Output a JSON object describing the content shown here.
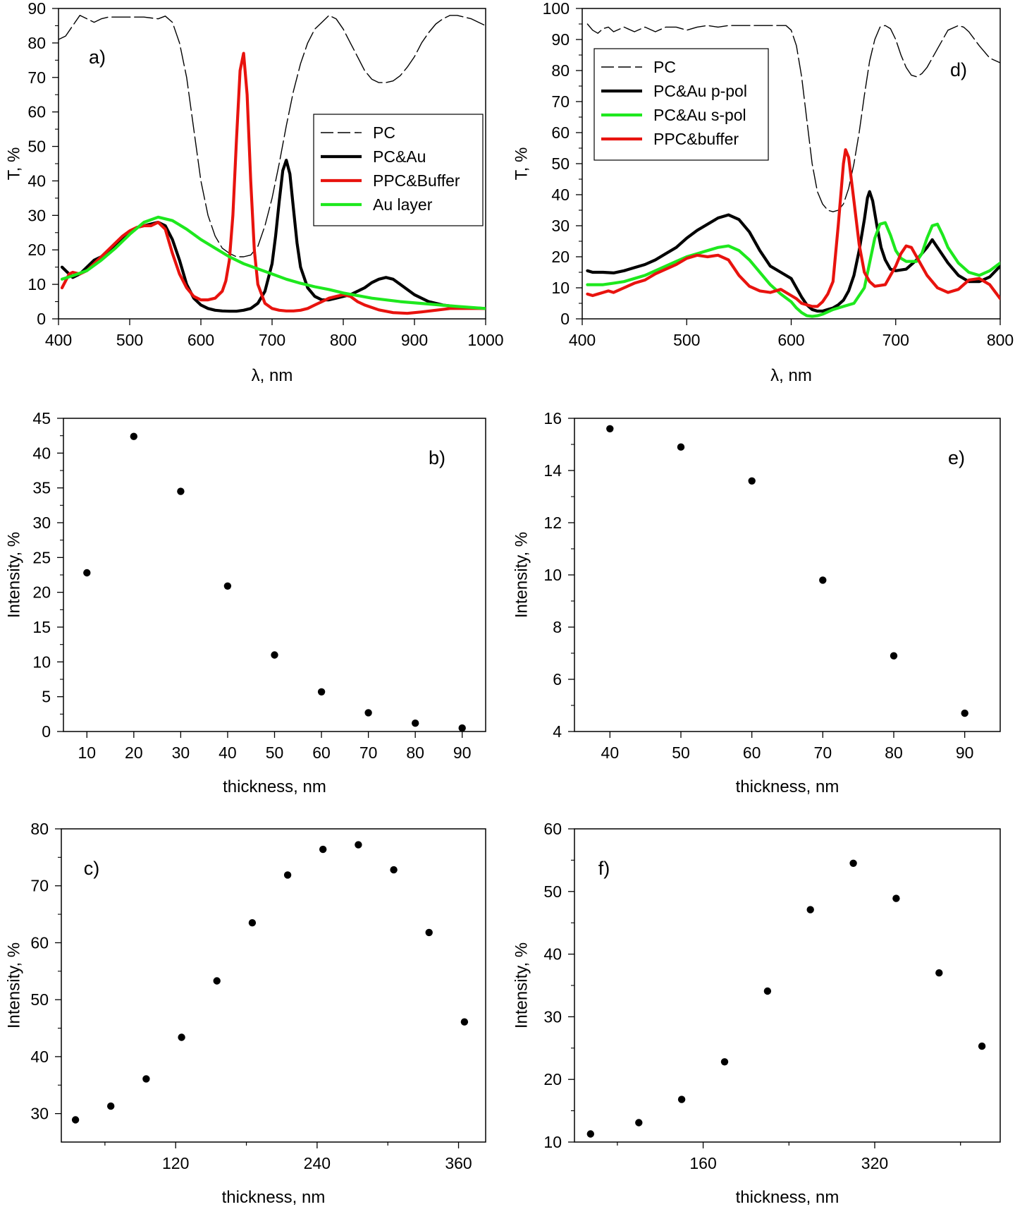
{
  "chart_data": [
    {
      "id": "a",
      "type": "line",
      "panel_label": "a)",
      "xlabel": "λ, nm",
      "ylabel": "T, %",
      "xlim": [
        400,
        1000
      ],
      "ylim": [
        0,
        90
      ],
      "xticks": [
        400,
        500,
        600,
        700,
        800,
        900,
        1000
      ],
      "yticks": [
        0,
        10,
        20,
        30,
        40,
        50,
        60,
        70,
        80,
        90
      ],
      "legend_position": "center-right",
      "series": [
        {
          "name": "PC",
          "color": "#000000",
          "style": "dashed",
          "x": [
            400,
            410,
            420,
            430,
            440,
            450,
            460,
            470,
            480,
            500,
            520,
            540,
            550,
            560,
            570,
            580,
            590,
            600,
            610,
            620,
            630,
            640,
            650,
            660,
            670,
            680,
            690,
            700,
            710,
            720,
            730,
            740,
            750,
            760,
            770,
            780,
            790,
            800,
            810,
            820,
            830,
            840,
            850,
            860,
            870,
            880,
            890,
            900,
            910,
            920,
            930,
            940,
            950,
            960,
            970,
            980,
            990,
            1000
          ],
          "y": [
            81,
            82,
            85,
            88,
            87,
            86,
            87,
            87.5,
            87.5,
            87.5,
            87.5,
            87,
            87.8,
            86,
            80,
            70,
            55,
            40,
            30,
            24,
            20.5,
            19,
            18,
            18,
            18.5,
            21,
            27,
            35,
            45,
            56,
            66,
            74,
            80,
            84,
            86,
            88,
            87,
            84,
            80,
            76,
            72,
            69.5,
            68.5,
            68.5,
            69,
            70.5,
            73,
            76,
            80,
            83,
            85.5,
            87,
            88,
            88,
            87.5,
            87,
            86,
            85
          ]
        },
        {
          "name": "PC&Au",
          "color": "#000000",
          "style": "solid",
          "x": [
            405,
            410,
            420,
            430,
            440,
            450,
            460,
            470,
            480,
            490,
            500,
            510,
            520,
            530,
            540,
            550,
            560,
            570,
            580,
            590,
            600,
            610,
            620,
            630,
            640,
            650,
            660,
            670,
            680,
            690,
            700,
            705,
            710,
            715,
            720,
            725,
            730,
            735,
            740,
            750,
            760,
            770,
            780,
            790,
            800,
            810,
            820,
            830,
            840,
            850,
            860,
            870,
            880,
            890,
            900,
            920,
            940,
            960,
            980,
            1000
          ],
          "y": [
            15,
            14,
            12,
            13,
            15,
            17,
            18,
            19.5,
            21,
            23,
            25,
            26.5,
            27,
            27.5,
            28,
            27,
            23,
            17,
            10,
            6,
            4,
            3,
            2.5,
            2.3,
            2.2,
            2.2,
            2.5,
            3,
            4.5,
            8,
            16,
            24,
            34,
            43,
            46,
            42,
            32,
            22,
            15,
            9,
            6.5,
            5.5,
            5.5,
            6,
            6.5,
            7,
            8,
            9,
            10.5,
            11.5,
            12,
            11.5,
            10,
            8.5,
            7,
            5,
            4,
            3.5,
            3.2,
            3
          ]
        },
        {
          "name": "PPC&Buffer",
          "color": "#e8130e",
          "style": "solid",
          "x": [
            405,
            410,
            415,
            420,
            430,
            440,
            450,
            460,
            470,
            480,
            490,
            500,
            510,
            520,
            530,
            540,
            550,
            560,
            570,
            580,
            590,
            600,
            610,
            620,
            630,
            635,
            640,
            645,
            650,
            655,
            660,
            665,
            670,
            675,
            680,
            690,
            700,
            710,
            720,
            730,
            740,
            750,
            760,
            770,
            780,
            790,
            800,
            810,
            820,
            830,
            850,
            870,
            890,
            910,
            930,
            950,
            970,
            1000
          ],
          "y": [
            9,
            11,
            13,
            13.5,
            13,
            14,
            16,
            18,
            20,
            22,
            24,
            25.5,
            26.5,
            27,
            27,
            28,
            26,
            19,
            13,
            9,
            6.5,
            5.5,
            5.5,
            6,
            8,
            11,
            17,
            30,
            52,
            72,
            77,
            65,
            40,
            20,
            10,
            4.5,
            3,
            2.5,
            2.3,
            2.3,
            2.5,
            3,
            4,
            5,
            6,
            6.5,
            7,
            6.5,
            5,
            4,
            2.6,
            1.8,
            1.6,
            2,
            2.5,
            3,
            3,
            3
          ]
        },
        {
          "name": "Au layer",
          "color": "#1ee81e",
          "style": "solid",
          "x": [
            405,
            420,
            440,
            460,
            480,
            500,
            520,
            540,
            560,
            580,
            600,
            620,
            640,
            660,
            680,
            700,
            720,
            740,
            760,
            780,
            800,
            840,
            880,
            920,
            960,
            1000
          ],
          "y": [
            11.5,
            12.5,
            14,
            17,
            20.5,
            24.5,
            28,
            29.5,
            28.5,
            26,
            23,
            20.5,
            18,
            16,
            14.5,
            13,
            11.5,
            10.3,
            9.3,
            8.5,
            7.5,
            6,
            5,
            4.3,
            3.6,
            3
          ]
        }
      ]
    },
    {
      "id": "d",
      "type": "line",
      "panel_label": "d)",
      "xlabel": "λ, nm",
      "ylabel": "T, %",
      "xlim": [
        400,
        800
      ],
      "ylim": [
        0,
        100
      ],
      "xticks": [
        400,
        500,
        600,
        700,
        800
      ],
      "yticks": [
        0,
        10,
        20,
        30,
        40,
        50,
        60,
        70,
        80,
        90,
        100
      ],
      "legend_position": "top-left",
      "series": [
        {
          "name": "PC",
          "color": "#000000",
          "style": "dashed",
          "x": [
            405,
            410,
            415,
            420,
            425,
            430,
            440,
            450,
            460,
            470,
            480,
            490,
            500,
            510,
            520,
            530,
            540,
            550,
            560,
            570,
            580,
            590,
            595,
            600,
            605,
            610,
            615,
            620,
            625,
            630,
            635,
            640,
            645,
            650,
            655,
            660,
            665,
            670,
            675,
            680,
            685,
            690,
            695,
            700,
            705,
            710,
            715,
            720,
            725,
            730,
            740,
            750,
            760,
            765,
            770,
            780,
            790,
            800
          ],
          "y": [
            95,
            93,
            92,
            93.5,
            94,
            92.5,
            94,
            92.5,
            94,
            92.5,
            94,
            94,
            93,
            94,
            94.5,
            94,
            94.5,
            94.5,
            94.5,
            94.5,
            94.5,
            94.5,
            94.5,
            93,
            88,
            78,
            64,
            50,
            41,
            37,
            35,
            34.5,
            35,
            37,
            42,
            50,
            60,
            72,
            83,
            90,
            94,
            94.5,
            93.5,
            90,
            85,
            81,
            78.5,
            78,
            79,
            81,
            87,
            93,
            94.5,
            94,
            92.5,
            88,
            84,
            82.5
          ]
        },
        {
          "name": "PC&Au p-pol",
          "color": "#000000",
          "style": "solid",
          "x": [
            405,
            410,
            420,
            430,
            440,
            450,
            460,
            470,
            480,
            490,
            500,
            510,
            520,
            530,
            540,
            550,
            560,
            570,
            580,
            590,
            600,
            605,
            610,
            615,
            620,
            625,
            630,
            635,
            640,
            645,
            650,
            655,
            660,
            665,
            670,
            673,
            675,
            678,
            682,
            686,
            690,
            695,
            700,
            710,
            720,
            730,
            735,
            740,
            750,
            760,
            770,
            780,
            790,
            800
          ],
          "y": [
            15.5,
            15,
            15,
            14.8,
            15.5,
            16.5,
            17.5,
            19,
            21,
            23,
            26,
            28.5,
            30.5,
            32.5,
            33.5,
            32,
            28,
            22,
            17,
            15,
            13,
            10,
            7,
            4.5,
            3,
            2.5,
            2.5,
            3,
            3.5,
            4.5,
            6,
            9,
            14,
            22,
            32,
            39,
            41,
            38,
            30,
            23,
            19,
            16,
            15.5,
            16,
            19,
            23,
            25.5,
            23,
            18,
            14,
            12,
            12,
            13.5,
            17
          ]
        },
        {
          "name": "PC&Au s-pol",
          "color": "#1ee81e",
          "style": "solid",
          "x": [
            405,
            410,
            420,
            430,
            440,
            450,
            460,
            470,
            480,
            490,
            500,
            510,
            520,
            530,
            540,
            550,
            560,
            570,
            580,
            590,
            600,
            605,
            610,
            615,
            620,
            625,
            630,
            640,
            650,
            660,
            670,
            675,
            680,
            685,
            690,
            695,
            700,
            705,
            710,
            720,
            725,
            730,
            735,
            740,
            745,
            750,
            760,
            770,
            780,
            790,
            800
          ],
          "y": [
            11,
            11,
            11,
            11.5,
            12,
            13,
            14,
            15.5,
            17,
            18.5,
            20,
            21,
            22,
            23,
            23.5,
            22,
            19,
            15,
            11,
            8,
            5.5,
            3.5,
            2,
            1,
            0.8,
            1,
            1.5,
            3,
            4,
            5,
            10,
            18,
            26,
            30.5,
            31,
            27,
            22,
            19.5,
            18.5,
            18.5,
            21,
            26,
            30,
            30.5,
            27,
            23,
            18,
            15,
            14,
            15.5,
            18
          ]
        },
        {
          "name": "PPC&buffer",
          "color": "#e8130e",
          "style": "solid",
          "x": [
            405,
            410,
            415,
            420,
            425,
            430,
            440,
            450,
            460,
            470,
            480,
            490,
            500,
            510,
            520,
            530,
            540,
            550,
            560,
            570,
            580,
            590,
            600,
            605,
            610,
            620,
            625,
            630,
            635,
            640,
            645,
            650,
            652,
            655,
            660,
            665,
            670,
            675,
            680,
            690,
            700,
            705,
            710,
            715,
            720,
            730,
            740,
            750,
            760,
            770,
            780,
            790,
            800
          ],
          "y": [
            8,
            7.5,
            8,
            8.5,
            9,
            8.5,
            10,
            11.5,
            12.5,
            14.5,
            16,
            17.5,
            19.5,
            20.5,
            20,
            20.5,
            19,
            14,
            10.5,
            9,
            8.5,
            9.5,
            7.5,
            6.5,
            5,
            4,
            4,
            5.5,
            8,
            12,
            30,
            50,
            54.5,
            52,
            38,
            24,
            15,
            12,
            10.5,
            11,
            17,
            21,
            23.5,
            23,
            20,
            14,
            10,
            8.5,
            9.5,
            12.5,
            13,
            11,
            6.5
          ]
        }
      ]
    },
    {
      "id": "b",
      "type": "scatter",
      "panel_label": "b)",
      "xlabel": "thickness, nm",
      "ylabel": "Intensity, %",
      "xlim": [
        5,
        95
      ],
      "ylim": [
        0,
        45
      ],
      "xticks": [
        10,
        20,
        30,
        40,
        50,
        60,
        70,
        80,
        90
      ],
      "yticks": [
        0,
        5,
        10,
        15,
        20,
        25,
        30,
        35,
        40,
        45
      ],
      "x": [
        10,
        20,
        30,
        40,
        50,
        60,
        70,
        80,
        90
      ],
      "y": [
        22.8,
        42.4,
        34.5,
        20.9,
        11.0,
        5.7,
        2.7,
        1.2,
        0.5
      ]
    },
    {
      "id": "e",
      "type": "scatter",
      "panel_label": "e)",
      "xlabel": "thickness, nm",
      "ylabel": "Intensity, %",
      "xlim": [
        35,
        95
      ],
      "ylim": [
        4,
        16
      ],
      "xticks": [
        40,
        50,
        60,
        70,
        80,
        90
      ],
      "yticks": [
        4,
        6,
        8,
        10,
        12,
        14,
        16
      ],
      "x": [
        40,
        50,
        60,
        70,
        80,
        90
      ],
      "y": [
        15.6,
        14.9,
        13.6,
        9.8,
        6.9,
        4.7
      ]
    },
    {
      "id": "c",
      "type": "scatter",
      "panel_label": "c)",
      "xlabel": "thickness, nm",
      "ylabel": "Intensity, %",
      "xlim": [
        23,
        383
      ],
      "ylim": [
        25,
        80
      ],
      "xticks": [
        120,
        240,
        360
      ],
      "minor_xticks": [
        60,
        180,
        300
      ],
      "yticks": [
        30,
        40,
        50,
        60,
        70,
        80
      ],
      "x": [
        35,
        65,
        95,
        125,
        155,
        185,
        215,
        245,
        275,
        305,
        335,
        365
      ],
      "y": [
        28.9,
        31.3,
        36.1,
        43.4,
        53.3,
        63.5,
        71.9,
        76.4,
        77.2,
        72.8,
        61.8,
        46.1
      ]
    },
    {
      "id": "f",
      "type": "scatter",
      "panel_label": "f)",
      "xlabel": "thickness, nm",
      "ylabel": "Intensity, %",
      "xlim": [
        40,
        437
      ],
      "ylim": [
        10,
        60
      ],
      "xticks": [
        160,
        320
      ],
      "minor_xticks": [
        80,
        240,
        400
      ],
      "yticks": [
        10,
        20,
        30,
        40,
        50,
        60
      ],
      "x": [
        55,
        100,
        140,
        180,
        220,
        260,
        300,
        340,
        380,
        420
      ],
      "y": [
        11.3,
        13.1,
        16.8,
        22.8,
        34.1,
        47.1,
        54.5,
        48.9,
        37.0,
        25.3
      ]
    }
  ]
}
